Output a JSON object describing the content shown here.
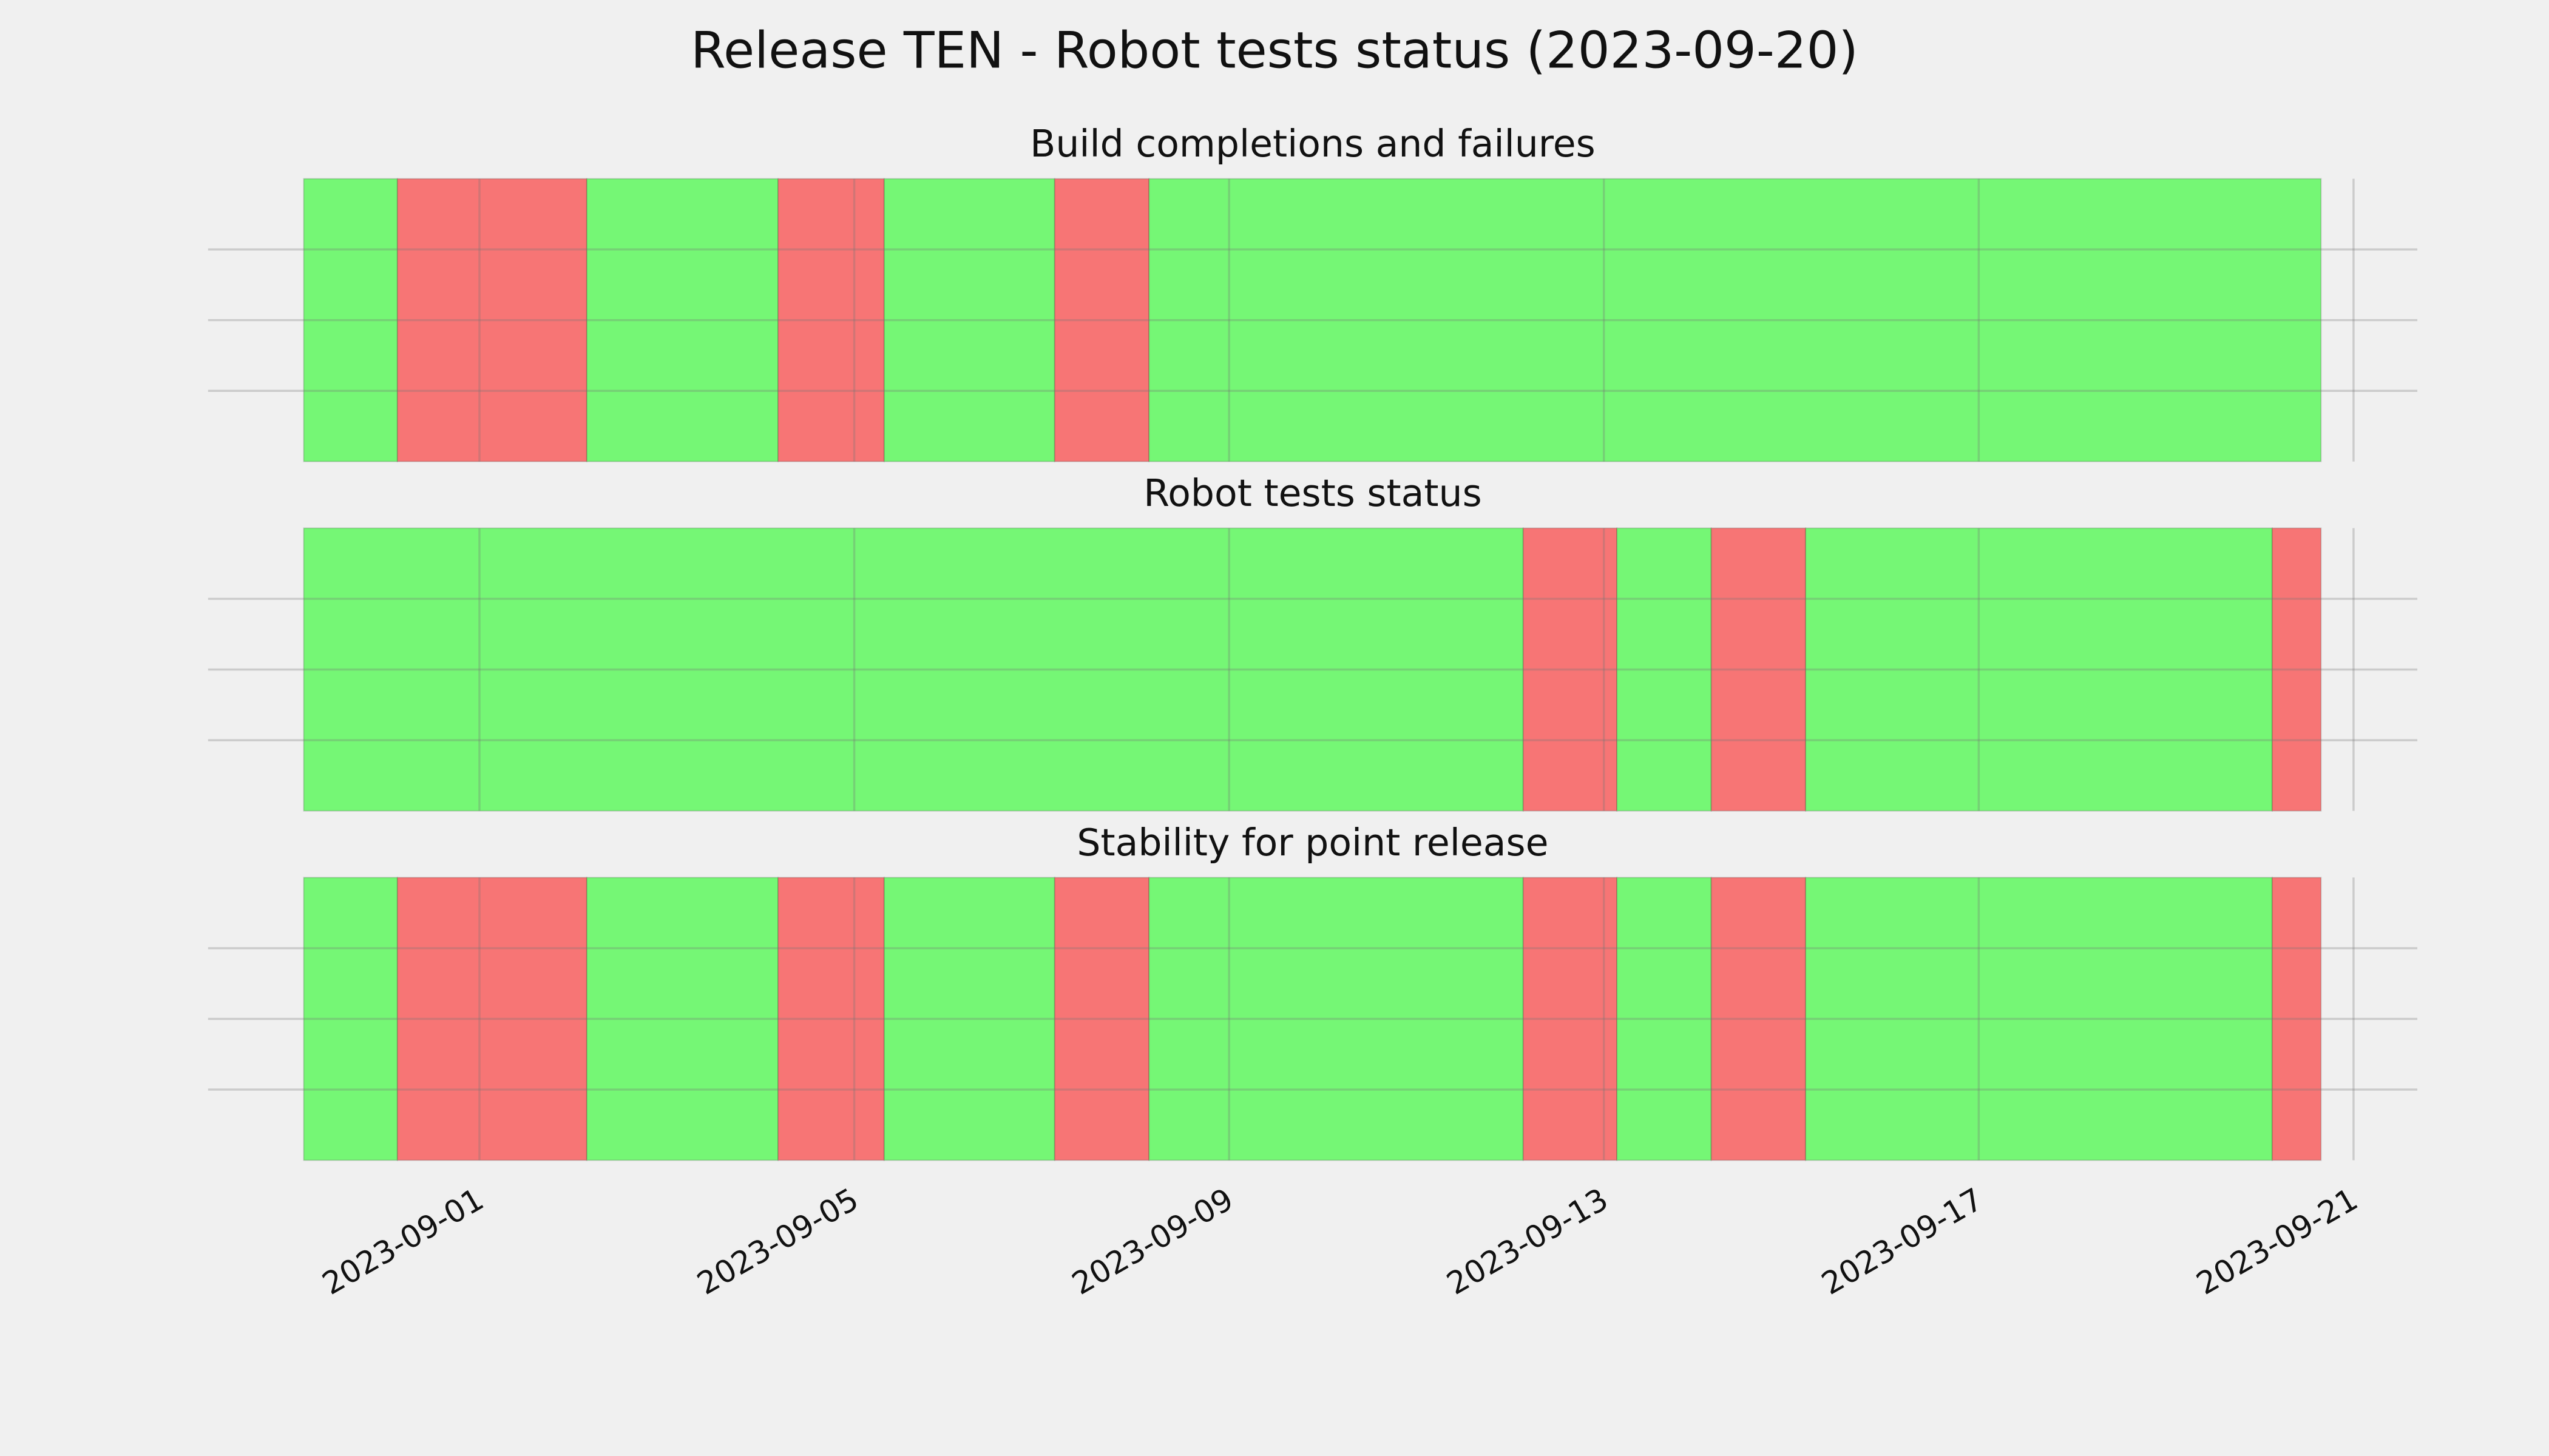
{
  "title": "Release TEN - Robot tests status (2023-09-20)",
  "chart_data": [
    {
      "type": "span",
      "title": "Build completions and failures",
      "segments": [
        {
          "start": "2023-08-30T03:00",
          "end": "2023-08-31T03:00",
          "color": "#75f775"
        },
        {
          "start": "2023-08-31T03:00",
          "end": "2023-09-02T03:30",
          "color": "#f77575"
        },
        {
          "start": "2023-09-02T03:30",
          "end": "2023-09-04T04:30",
          "color": "#75f775"
        },
        {
          "start": "2023-09-04T04:30",
          "end": "2023-09-05T07:40",
          "color": "#f77575"
        },
        {
          "start": "2023-09-05T07:40",
          "end": "2023-09-07T03:20",
          "color": "#75f775"
        },
        {
          "start": "2023-09-07T03:20",
          "end": "2023-09-08T03:30",
          "color": "#f77575"
        },
        {
          "start": "2023-09-08T03:30",
          "end": "2023-09-20T15:40",
          "color": "#75f775"
        }
      ],
      "ylim": [
        0,
        1
      ],
      "yticks": [
        0.25,
        0.5,
        0.75
      ],
      "grid": true
    },
    {
      "type": "span",
      "title": "Robot tests status",
      "segments": [
        {
          "start": "2023-08-30T03:00",
          "end": "2023-09-12T03:20",
          "color": "#75f775"
        },
        {
          "start": "2023-09-12T03:20",
          "end": "2023-09-13T03:20",
          "color": "#f77575"
        },
        {
          "start": "2023-09-13T03:20",
          "end": "2023-09-14T03:30",
          "color": "#75f775"
        },
        {
          "start": "2023-09-14T03:30",
          "end": "2023-09-15T03:40",
          "color": "#f77575"
        },
        {
          "start": "2023-09-15T03:40",
          "end": "2023-09-20T03:10",
          "color": "#75f775"
        },
        {
          "start": "2023-09-20T03:10",
          "end": "2023-09-20T15:40",
          "color": "#f77575"
        }
      ],
      "ylim": [
        0,
        1
      ],
      "yticks": [
        0.25,
        0.5,
        0.75
      ],
      "grid": true
    },
    {
      "type": "span",
      "title": "Stability for point release",
      "segments": [
        {
          "start": "2023-08-30T03:00",
          "end": "2023-08-31T03:00",
          "color": "#75f775"
        },
        {
          "start": "2023-08-31T03:00",
          "end": "2023-09-02T03:30",
          "color": "#f77575"
        },
        {
          "start": "2023-09-02T03:30",
          "end": "2023-09-04T04:30",
          "color": "#75f775"
        },
        {
          "start": "2023-09-04T04:30",
          "end": "2023-09-05T07:40",
          "color": "#f77575"
        },
        {
          "start": "2023-09-05T07:40",
          "end": "2023-09-07T03:20",
          "color": "#75f775"
        },
        {
          "start": "2023-09-07T03:20",
          "end": "2023-09-08T03:30",
          "color": "#f77575"
        },
        {
          "start": "2023-09-08T03:30",
          "end": "2023-09-12T03:20",
          "color": "#75f775"
        },
        {
          "start": "2023-09-12T03:20",
          "end": "2023-09-13T03:20",
          "color": "#f77575"
        },
        {
          "start": "2023-09-13T03:20",
          "end": "2023-09-14T03:30",
          "color": "#75f775"
        },
        {
          "start": "2023-09-14T03:30",
          "end": "2023-09-15T03:40",
          "color": "#f77575"
        },
        {
          "start": "2023-09-15T03:40",
          "end": "2023-09-20T03:10",
          "color": "#75f775"
        },
        {
          "start": "2023-09-20T03:10",
          "end": "2023-09-20T15:40",
          "color": "#f77575"
        }
      ],
      "xlim": [
        "2023-08-29T02:30",
        "2023-09-21T16:20"
      ],
      "xticks": [
        "2023-09-01",
        "2023-09-05",
        "2023-09-09",
        "2023-09-13",
        "2023-09-17",
        "2023-09-21"
      ],
      "ylim": [
        0,
        1
      ],
      "yticks": [
        0.25,
        0.5,
        0.75
      ],
      "grid": true
    }
  ]
}
